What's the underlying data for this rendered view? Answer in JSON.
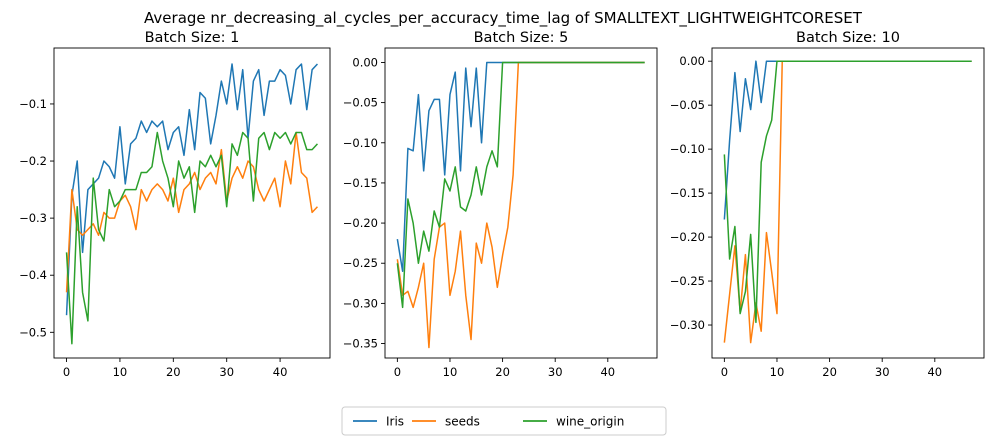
{
  "figure": {
    "suptitle": "Average nr_decreasing_al_cycles_per_accuracy_time_lag of SMALLTEXT_LIGHTWEIGHTCORESET"
  },
  "legend": {
    "placement": "bottom-center",
    "entries": [
      {
        "label": "Iris",
        "color": "#1f77b4"
      },
      {
        "label": "seeds",
        "color": "#ff7f0e"
      },
      {
        "label": "wine_origin",
        "color": "#2ca02c"
      }
    ]
  },
  "chart_data": [
    {
      "type": "line",
      "title": "Batch Size: 1",
      "xlabel": "",
      "ylabel": "",
      "xlim": [
        -2.35,
        49.35
      ],
      "ylim": [
        -0.545,
        -0.002
      ],
      "xticks": [
        0,
        10,
        20,
        30,
        40
      ],
      "yticks": [
        -0.5,
        -0.4,
        -0.3,
        -0.2,
        -0.1
      ],
      "ytick_labels": [
        "−0.5",
        "−0.4",
        "−0.3",
        "−0.2",
        "−0.1"
      ],
      "grid": false,
      "series": [
        {
          "name": "Iris",
          "color": "#1f77b4",
          "x_start": 0,
          "values": [
            -0.47,
            -0.26,
            -0.2,
            -0.36,
            -0.25,
            -0.24,
            -0.23,
            -0.2,
            -0.21,
            -0.23,
            -0.14,
            -0.24,
            -0.17,
            -0.16,
            -0.13,
            -0.15,
            -0.13,
            -0.14,
            -0.13,
            -0.18,
            -0.15,
            -0.14,
            -0.19,
            -0.11,
            -0.18,
            -0.08,
            -0.09,
            -0.17,
            -0.12,
            -0.06,
            -0.1,
            -0.03,
            -0.11,
            -0.04,
            -0.16,
            -0.06,
            -0.04,
            -0.12,
            -0.06,
            -0.06,
            -0.04,
            -0.05,
            -0.1,
            -0.04,
            -0.03,
            -0.11,
            -0.04,
            -0.03
          ]
        },
        {
          "name": "seeds",
          "color": "#ff7f0e",
          "x_start": 0,
          "values": [
            -0.43,
            -0.25,
            -0.32,
            -0.33,
            -0.32,
            -0.31,
            -0.33,
            -0.29,
            -0.3,
            -0.3,
            -0.27,
            -0.26,
            -0.28,
            -0.32,
            -0.25,
            -0.27,
            -0.25,
            -0.24,
            -0.25,
            -0.27,
            -0.23,
            -0.29,
            -0.25,
            -0.24,
            -0.22,
            -0.25,
            -0.23,
            -0.22,
            -0.24,
            -0.18,
            -0.27,
            -0.23,
            -0.21,
            -0.23,
            -0.2,
            -0.21,
            -0.25,
            -0.27,
            -0.25,
            -0.23,
            -0.28,
            -0.2,
            -0.24,
            -0.15,
            -0.22,
            -0.23,
            -0.29,
            -0.28
          ]
        },
        {
          "name": "wine_origin",
          "color": "#2ca02c",
          "x_start": 0,
          "values": [
            -0.36,
            -0.52,
            -0.28,
            -0.43,
            -0.48,
            -0.23,
            -0.32,
            -0.34,
            -0.25,
            -0.28,
            -0.27,
            -0.25,
            -0.25,
            -0.25,
            -0.22,
            -0.22,
            -0.21,
            -0.15,
            -0.2,
            -0.23,
            -0.28,
            -0.2,
            -0.23,
            -0.21,
            -0.29,
            -0.2,
            -0.21,
            -0.19,
            -0.21,
            -0.19,
            -0.28,
            -0.17,
            -0.19,
            -0.15,
            -0.16,
            -0.27,
            -0.16,
            -0.15,
            -0.18,
            -0.15,
            -0.16,
            -0.15,
            -0.17,
            -0.15,
            -0.15,
            -0.18,
            -0.18,
            -0.17
          ]
        }
      ]
    },
    {
      "type": "line",
      "title": "Batch Size: 5",
      "xlabel": "",
      "ylabel": "",
      "xlim": [
        -2.35,
        49.35
      ],
      "ylim": [
        -0.368,
        0.018
      ],
      "xticks": [
        0,
        10,
        20,
        30,
        40
      ],
      "yticks": [
        -0.35,
        -0.3,
        -0.25,
        -0.2,
        -0.15,
        -0.1,
        -0.05,
        0.0
      ],
      "ytick_labels": [
        "−0.35",
        "−0.30",
        "−0.25",
        "−0.20",
        "−0.15",
        "−0.10",
        "−0.05",
        "0.00"
      ],
      "grid": false,
      "series": [
        {
          "name": "Iris",
          "color": "#1f77b4",
          "x_start": 0,
          "values": [
            -0.22,
            -0.26,
            -0.107,
            -0.11,
            -0.04,
            -0.135,
            -0.06,
            -0.046,
            -0.046,
            -0.14,
            -0.04,
            -0.012,
            -0.135,
            -0.007,
            -0.08,
            -0.007,
            -0.1,
            0,
            0,
            0,
            0,
            0,
            0,
            0,
            0,
            0,
            0,
            0,
            0,
            0,
            0,
            0,
            0,
            0,
            0,
            0,
            0,
            0,
            0,
            0,
            0,
            0,
            0,
            0,
            0,
            0,
            0,
            0
          ]
        },
        {
          "name": "seeds",
          "color": "#ff7f0e",
          "x_start": 0,
          "values": [
            -0.245,
            -0.29,
            -0.285,
            -0.305,
            -0.28,
            -0.25,
            -0.355,
            -0.245,
            -0.205,
            -0.2,
            -0.29,
            -0.26,
            -0.21,
            -0.29,
            -0.345,
            -0.225,
            -0.25,
            -0.2,
            -0.23,
            -0.28,
            -0.24,
            -0.205,
            -0.14,
            0,
            0,
            0,
            0,
            0,
            0,
            0,
            0,
            0,
            0,
            0,
            0,
            0,
            0,
            0,
            0,
            0,
            0,
            0,
            0,
            0,
            0,
            0,
            0,
            0
          ]
        },
        {
          "name": "wine_origin",
          "color": "#2ca02c",
          "x_start": 0,
          "values": [
            -0.25,
            -0.305,
            -0.17,
            -0.2,
            -0.25,
            -0.21,
            -0.235,
            -0.185,
            -0.205,
            -0.145,
            -0.16,
            -0.13,
            -0.18,
            -0.185,
            -0.165,
            -0.13,
            -0.165,
            -0.13,
            -0.11,
            -0.13,
            0,
            0,
            0,
            0,
            0,
            0,
            0,
            0,
            0,
            0,
            0,
            0,
            0,
            0,
            0,
            0,
            0,
            0,
            0,
            0,
            0,
            0,
            0,
            0,
            0,
            0,
            0,
            0
          ]
        }
      ]
    },
    {
      "type": "line",
      "title": "Batch Size: 10",
      "xlabel": "",
      "ylabel": "",
      "xlim": [
        -2.35,
        49.35
      ],
      "ylim": [
        -0.3375,
        0.015
      ],
      "xticks": [
        0,
        10,
        20,
        30,
        40
      ],
      "yticks": [
        -0.3,
        -0.25,
        -0.2,
        -0.15,
        -0.1,
        -0.05,
        0.0
      ],
      "ytick_labels": [
        "−0.30",
        "−0.25",
        "−0.20",
        "−0.15",
        "−0.10",
        "−0.05",
        "0.00"
      ],
      "grid": false,
      "series": [
        {
          "name": "Iris",
          "color": "#1f77b4",
          "x_start": 0,
          "values": [
            -0.18,
            -0.09,
            -0.013,
            -0.08,
            -0.02,
            -0.055,
            0,
            -0.047,
            0,
            0,
            0,
            0,
            0,
            0,
            0,
            0,
            0,
            0,
            0,
            0,
            0,
            0,
            0,
            0,
            0,
            0,
            0,
            0,
            0,
            0,
            0,
            0,
            0,
            0,
            0,
            0,
            0,
            0,
            0,
            0,
            0,
            0,
            0,
            0,
            0,
            0,
            0,
            0
          ]
        },
        {
          "name": "seeds",
          "color": "#ff7f0e",
          "x_start": 0,
          "values": [
            -0.32,
            -0.265,
            -0.21,
            -0.285,
            -0.22,
            -0.32,
            -0.275,
            -0.307,
            -0.195,
            -0.24,
            -0.287,
            0,
            0,
            0,
            0,
            0,
            0,
            0,
            0,
            0,
            0,
            0,
            0,
            0,
            0,
            0,
            0,
            0,
            0,
            0,
            0,
            0,
            0,
            0,
            0,
            0,
            0,
            0,
            0,
            0,
            0,
            0,
            0,
            0,
            0,
            0,
            0,
            0
          ]
        },
        {
          "name": "wine_origin",
          "color": "#2ca02c",
          "x_start": 0,
          "values": [
            -0.106,
            -0.225,
            -0.188,
            -0.287,
            -0.262,
            -0.197,
            -0.297,
            -0.115,
            -0.085,
            -0.067,
            0,
            0,
            0,
            0,
            0,
            0,
            0,
            0,
            0,
            0,
            0,
            0,
            0,
            0,
            0,
            0,
            0,
            0,
            0,
            0,
            0,
            0,
            0,
            0,
            0,
            0,
            0,
            0,
            0,
            0,
            0,
            0,
            0,
            0,
            0,
            0,
            0,
            0
          ]
        }
      ]
    }
  ]
}
